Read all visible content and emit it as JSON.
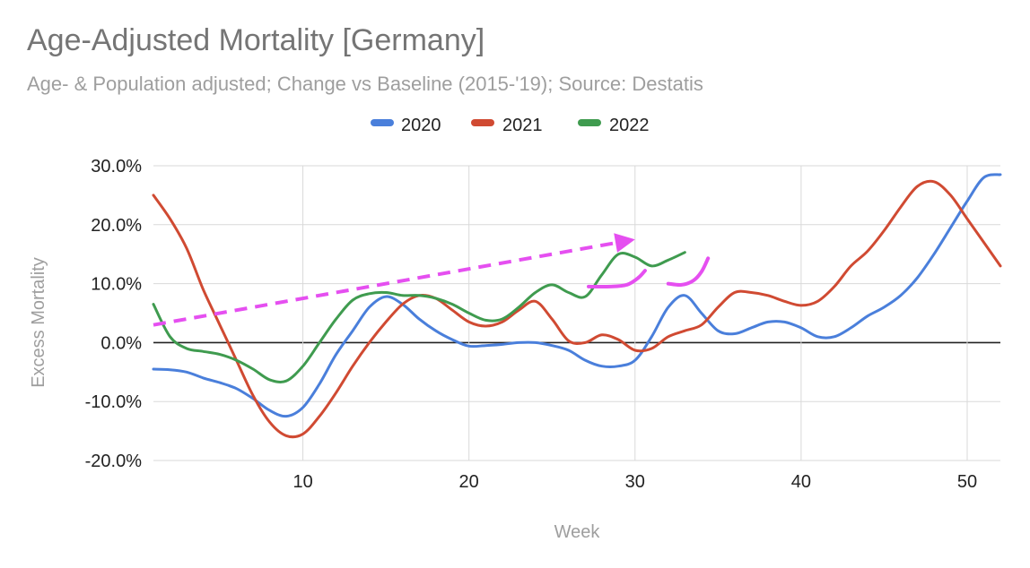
{
  "chart_data": {
    "type": "line",
    "title": "Age-Adjusted Mortality [Germany]",
    "subtitle": "Age- & Population adjusted; Change vs Baseline (2015-'19); Source: Destatis",
    "xlabel": "Week",
    "ylabel": "Excess Mortality",
    "xlim": [
      1,
      52
    ],
    "ylim": [
      -20,
      30
    ],
    "x_ticks": [
      10,
      20,
      30,
      40,
      50
    ],
    "y_ticks": [
      30,
      20,
      10,
      0,
      -10,
      -20
    ],
    "y_tick_labels": [
      "30.0%",
      "20.0%",
      "10.0%",
      "0.0%",
      "-10.0%",
      "-20.0%"
    ],
    "grid": true,
    "legend_position": "top",
    "series": [
      {
        "name": "2020",
        "color": "#4a7fdb",
        "points": [
          [
            1,
            -4.5
          ],
          [
            2,
            -4.6
          ],
          [
            3,
            -5
          ],
          [
            4,
            -6
          ],
          [
            5,
            -6.8
          ],
          [
            6,
            -7.8
          ],
          [
            7,
            -9.5
          ],
          [
            8,
            -11.5
          ],
          [
            9,
            -12.5
          ],
          [
            10,
            -11
          ],
          [
            11,
            -7
          ],
          [
            12,
            -2
          ],
          [
            13,
            2
          ],
          [
            14,
            6
          ],
          [
            15,
            7.8
          ],
          [
            16,
            6.5
          ],
          [
            17,
            4
          ],
          [
            18,
            2
          ],
          [
            19,
            0.5
          ],
          [
            20,
            -0.6
          ],
          [
            21,
            -0.5
          ],
          [
            22,
            -0.3
          ],
          [
            23,
            0
          ],
          [
            24,
            0
          ],
          [
            25,
            -0.5
          ],
          [
            26,
            -1.3
          ],
          [
            27,
            -3
          ],
          [
            28,
            -4
          ],
          [
            29,
            -4
          ],
          [
            30,
            -3
          ],
          [
            31,
            1
          ],
          [
            32,
            6
          ],
          [
            33,
            8
          ],
          [
            34,
            5
          ],
          [
            35,
            2
          ],
          [
            36,
            1.5
          ],
          [
            37,
            2.5
          ],
          [
            38,
            3.5
          ],
          [
            39,
            3.5
          ],
          [
            40,
            2.5
          ],
          [
            41,
            1
          ],
          [
            42,
            1
          ],
          [
            43,
            2.5
          ],
          [
            44,
            4.5
          ],
          [
            45,
            6
          ],
          [
            46,
            8
          ],
          [
            47,
            11
          ],
          [
            48,
            15
          ],
          [
            49,
            19.5
          ],
          [
            50,
            24
          ],
          [
            51,
            28
          ],
          [
            52,
            28.5
          ]
        ]
      },
      {
        "name": "2021",
        "color": "#d04a32",
        "points": [
          [
            1,
            25
          ],
          [
            2,
            21
          ],
          [
            3,
            16
          ],
          [
            4,
            9
          ],
          [
            5,
            3
          ],
          [
            6,
            -3
          ],
          [
            7,
            -9
          ],
          [
            8,
            -13.5
          ],
          [
            9,
            -15.8
          ],
          [
            10,
            -15.5
          ],
          [
            11,
            -12.5
          ],
          [
            12,
            -8.5
          ],
          [
            13,
            -4
          ],
          [
            14,
            0
          ],
          [
            15,
            3.5
          ],
          [
            16,
            6.5
          ],
          [
            17,
            8
          ],
          [
            18,
            7.5
          ],
          [
            19,
            5.5
          ],
          [
            20,
            3.5
          ],
          [
            21,
            2.8
          ],
          [
            22,
            3.5
          ],
          [
            23,
            5.5
          ],
          [
            24,
            7
          ],
          [
            25,
            4
          ],
          [
            26,
            0.3
          ],
          [
            27,
            0
          ],
          [
            28,
            1.3
          ],
          [
            29,
            0.5
          ],
          [
            30,
            -1.3
          ],
          [
            31,
            -1
          ],
          [
            32,
            1
          ],
          [
            33,
            2
          ],
          [
            34,
            3
          ],
          [
            35,
            6
          ],
          [
            36,
            8.5
          ],
          [
            37,
            8.5
          ],
          [
            38,
            8
          ],
          [
            39,
            7
          ],
          [
            40,
            6.3
          ],
          [
            41,
            7
          ],
          [
            42,
            9.5
          ],
          [
            43,
            13
          ],
          [
            44,
            15.5
          ],
          [
            45,
            19
          ],
          [
            46,
            23
          ],
          [
            47,
            26.5
          ],
          [
            48,
            27.3
          ],
          [
            49,
            25
          ],
          [
            50,
            21
          ],
          [
            51,
            17
          ],
          [
            52,
            13
          ]
        ]
      },
      {
        "name": "2022",
        "color": "#3f9b4f",
        "points": [
          [
            1,
            6.5
          ],
          [
            2,
            1
          ],
          [
            3,
            -1
          ],
          [
            4,
            -1.5
          ],
          [
            5,
            -2
          ],
          [
            6,
            -3
          ],
          [
            7,
            -4.5
          ],
          [
            8,
            -6.3
          ],
          [
            9,
            -6.5
          ],
          [
            10,
            -4
          ],
          [
            11,
            0
          ],
          [
            12,
            4
          ],
          [
            13,
            7.2
          ],
          [
            14,
            8.3
          ],
          [
            15,
            8.5
          ],
          [
            16,
            8
          ],
          [
            17,
            8
          ],
          [
            18,
            7.5
          ],
          [
            19,
            6.5
          ],
          [
            20,
            5
          ],
          [
            21,
            3.8
          ],
          [
            22,
            4
          ],
          [
            23,
            6
          ],
          [
            24,
            8.5
          ],
          [
            25,
            9.8
          ],
          [
            26,
            8.5
          ],
          [
            27,
            7.8
          ],
          [
            28,
            11.5
          ],
          [
            29,
            15
          ],
          [
            30,
            14.5
          ],
          [
            31,
            13
          ],
          [
            32,
            14
          ],
          [
            33,
            15.3
          ]
        ]
      }
    ],
    "annotations": {
      "arrow_color": "#e54ff0",
      "arrow_start": [
        1,
        3
      ],
      "arrow_end": [
        30,
        17.5
      ],
      "strokes": [
        {
          "points": [
            [
              27.2,
              9.5
            ],
            [
              28.5,
              9.5
            ],
            [
              29.5,
              9.8
            ],
            [
              30.2,
              11
            ],
            [
              30.6,
              12.2
            ]
          ]
        },
        {
          "points": [
            [
              32,
              10
            ],
            [
              32.8,
              9.8
            ],
            [
              33.5,
              10.5
            ],
            [
              34,
              12
            ],
            [
              34.4,
              14.3
            ]
          ]
        }
      ]
    }
  }
}
